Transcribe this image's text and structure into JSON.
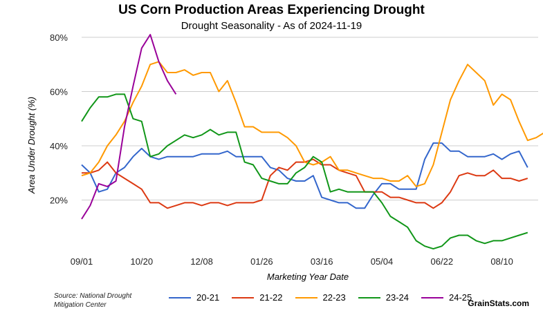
{
  "chart_data": {
    "type": "line",
    "title": "US Corn Production Areas Experiencing Drought",
    "subtitle": "Drought Seasonality - As of 2024-11-19",
    "xlabel": "Marketing Year Date",
    "ylabel": "Area Under Drought (%)",
    "ylim": [
      0,
      80
    ],
    "yticks": [
      20,
      40,
      60,
      80
    ],
    "ytick_labels": [
      "20%",
      "40%",
      "60%",
      "80%"
    ],
    "xlim": [
      0,
      53
    ],
    "xticks": [
      0,
      7,
      14,
      21,
      28,
      35,
      42,
      49
    ],
    "xtick_labels": [
      "09/01",
      "10/20",
      "12/08",
      "01/26",
      "03/16",
      "05/04",
      "06/22",
      "08/10"
    ],
    "grid": "horizontal",
    "legend_position": "bottom",
    "series": [
      {
        "name": "20-21",
        "color": "#3366cc",
        "values": [
          33,
          30,
          23,
          24,
          30,
          32,
          36,
          39,
          36,
          35,
          36,
          36,
          36,
          36,
          37,
          37,
          37,
          38,
          36,
          36,
          36,
          36,
          32,
          31,
          28,
          27,
          27,
          29,
          21,
          20,
          19,
          19,
          17,
          17,
          22,
          26,
          26,
          24,
          24,
          24,
          35,
          41,
          41,
          38,
          38,
          36,
          36,
          36,
          37,
          35,
          37,
          38,
          32
        ]
      },
      {
        "name": "21-22",
        "color": "#dc3912",
        "values": [
          30,
          30,
          31,
          34,
          30,
          28,
          26,
          24,
          19,
          19,
          17,
          18,
          19,
          19,
          18,
          19,
          19,
          18,
          19,
          19,
          19,
          20,
          29,
          32,
          31,
          34,
          34,
          35,
          33,
          33,
          31,
          30,
          29,
          23,
          23,
          23,
          21,
          21,
          20,
          19,
          19,
          17,
          19,
          23,
          29,
          30,
          29,
          29,
          31,
          28,
          28,
          27,
          28
        ]
      },
      {
        "name": "22-23",
        "color": "#ff9900",
        "values": [
          29,
          30,
          34,
          40,
          44,
          49,
          56,
          62,
          70,
          71,
          67,
          67,
          68,
          66,
          67,
          67,
          60,
          64,
          56,
          47,
          47,
          45,
          45,
          45,
          43,
          40,
          34,
          33,
          34,
          36,
          31,
          31,
          30,
          29,
          28,
          28,
          27,
          27,
          29,
          25,
          26,
          33,
          45,
          57,
          64,
          70,
          67,
          64,
          55,
          59,
          57,
          49,
          42,
          43,
          45
        ]
      },
      {
        "name": "23-24",
        "color": "#109618",
        "values": [
          49,
          54,
          58,
          58,
          59,
          59,
          50,
          49,
          36,
          37,
          40,
          42,
          44,
          43,
          44,
          46,
          44,
          45,
          45,
          34,
          33,
          28,
          27,
          26,
          26,
          30,
          32,
          36,
          34,
          23,
          24,
          23,
          23,
          23,
          23,
          19,
          14,
          12,
          10,
          5,
          3,
          2,
          3,
          6,
          7,
          7,
          5,
          4,
          5,
          5,
          6,
          7,
          8
        ]
      },
      {
        "name": "24-25",
        "color": "#990099",
        "values": [
          13,
          18,
          26,
          25,
          27,
          47,
          62,
          76,
          81,
          71,
          64,
          59
        ]
      }
    ]
  },
  "source_text": "Source: National Drought\nMitigation Center",
  "brand": "GrainStats.com"
}
